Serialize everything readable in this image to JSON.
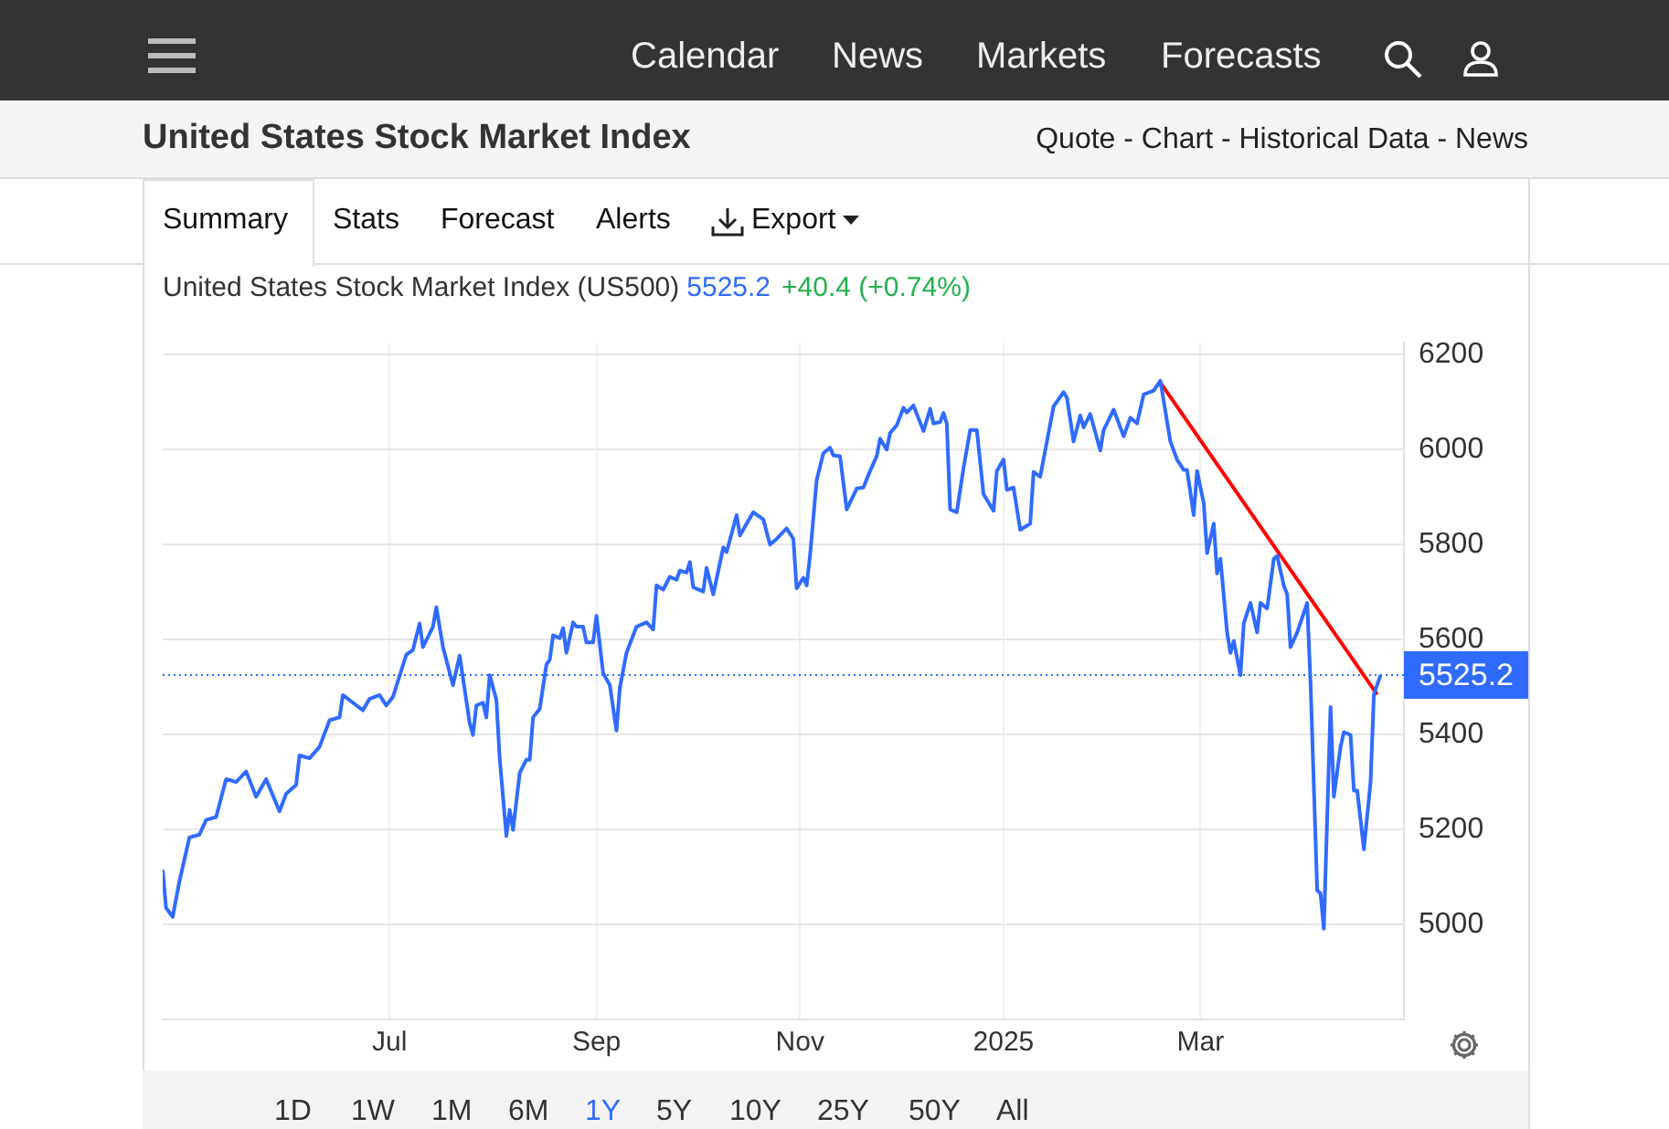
{
  "chart_data": {
    "type": "line",
    "title": "United States Stock Market Index",
    "subtitle": "United States Stock Market Index (US500)",
    "annotations": [
      "5525.2",
      "+40.4 (+0.74%)",
      "Calendar",
      "News",
      "Markets",
      "Forecasts",
      "Quote - Chart - Historical Data - News",
      "Summary",
      "Stats",
      "Forecast",
      "Alerts",
      "Export",
      "1D",
      "1W",
      "1M",
      "6M",
      "1Y",
      "5Y",
      "10Y",
      "25Y",
      "50Y",
      "All"
    ],
    "xlim": [
      "2024-04-24",
      "2025-05-01"
    ],
    "xticks": [
      {
        "value": "2024-07-01",
        "label": "Jul"
      },
      {
        "value": "2024-09-01",
        "label": "Sep"
      },
      {
        "value": "2024-11-01",
        "label": "Nov"
      },
      {
        "value": "2025-01-01",
        "label": "2025"
      },
      {
        "value": "2025-03-01",
        "label": "Mar"
      }
    ],
    "ylim": [
      4800,
      6225
    ],
    "yticks": [
      5000,
      5200,
      5400,
      5600,
      5800,
      6000,
      6200
    ],
    "grid": true,
    "legend": false,
    "marker": "none",
    "ref_lines": [
      {
        "axis": "y",
        "value": 5525.2,
        "label": "5525.2",
        "color": "#2f6bff",
        "line_style": "dotted"
      }
    ],
    "series": [
      {
        "color": "#2f6bff",
        "x": [
          "2024-04-24",
          "2024-04-25",
          "2024-04-27",
          "2024-04-29",
          "2024-05-02",
          "2024-05-05",
          "2024-05-07",
          "2024-05-10",
          "2024-05-13",
          "2024-05-16",
          "2024-05-19",
          "2024-05-22",
          "2024-05-25",
          "2024-05-29",
          "2024-05-31",
          "2024-06-03",
          "2024-06-04",
          "2024-06-07",
          "2024-06-10",
          "2024-06-13",
          "2024-06-16",
          "2024-06-17",
          "2024-06-20",
          "2024-06-23",
          "2024-06-25",
          "2024-06-28",
          "2024-06-30",
          "2024-07-02",
          "2024-07-06",
          "2024-07-08",
          "2024-07-10",
          "2024-07-11",
          "2024-07-14",
          "2024-07-15",
          "2024-07-17",
          "2024-07-20",
          "2024-07-22",
          "2024-07-25",
          "2024-07-26",
          "2024-07-27",
          "2024-07-29",
          "2024-07-30",
          "2024-07-31",
          "2024-08-02",
          "2024-08-03",
          "2024-08-05",
          "2024-08-06",
          "2024-08-07",
          "2024-08-09",
          "2024-08-11",
          "2024-08-12",
          "2024-08-13",
          "2024-08-15",
          "2024-08-17",
          "2024-08-18",
          "2024-08-19",
          "2024-08-21",
          "2024-08-22",
          "2024-08-23",
          "2024-08-25",
          "2024-08-26",
          "2024-08-28",
          "2024-08-29",
          "2024-08-31",
          "2024-09-01",
          "2024-09-03",
          "2024-09-05",
          "2024-09-07",
          "2024-09-08",
          "2024-09-10",
          "2024-09-13",
          "2024-09-16",
          "2024-09-18",
          "2024-09-19",
          "2024-09-21",
          "2024-09-23",
          "2024-09-25",
          "2024-09-26",
          "2024-09-28",
          "2024-09-29",
          "2024-09-30",
          "2024-10-03",
          "2024-10-04",
          "2024-10-06",
          "2024-10-09",
          "2024-10-10",
          "2024-10-13",
          "2024-10-14",
          "2024-10-16",
          "2024-10-18",
          "2024-10-21",
          "2024-10-23",
          "2024-10-25",
          "2024-10-28",
          "2024-10-30",
          "2024-10-31",
          "2024-11-02",
          "2024-11-03",
          "2024-11-04",
          "2024-11-06",
          "2024-11-08",
          "2024-11-10",
          "2024-11-11",
          "2024-11-13",
          "2024-11-15",
          "2024-11-18",
          "2024-11-20",
          "2024-11-22",
          "2024-11-24",
          "2024-11-25",
          "2024-11-27",
          "2024-11-28",
          "2024-11-30",
          "2024-12-02",
          "2024-12-03",
          "2024-12-05",
          "2024-12-08",
          "2024-12-10",
          "2024-12-11",
          "2024-12-13",
          "2024-12-14",
          "2024-12-15",
          "2024-12-16",
          "2024-12-18",
          "2024-12-20",
          "2024-12-22",
          "2024-12-24",
          "2024-12-26",
          "2024-12-29",
          "2024-12-30",
          "2025-01-01",
          "2025-01-02",
          "2025-01-04",
          "2025-01-06",
          "2025-01-09",
          "2025-01-10",
          "2025-01-12",
          "2025-01-14",
          "2025-01-16",
          "2025-01-19",
          "2025-01-20",
          "2025-01-22",
          "2025-01-24",
          "2025-01-25",
          "2025-01-27",
          "2025-01-30",
          "2025-01-31",
          "2025-02-03",
          "2025-02-06",
          "2025-02-08",
          "2025-02-10",
          "2025-02-12",
          "2025-02-15",
          "2025-02-17",
          "2025-02-20",
          "2025-02-22",
          "2025-02-24",
          "2025-02-25",
          "2025-02-27",
          "2025-02-28",
          "2025-03-02",
          "2025-03-03",
          "2025-03-05",
          "2025-03-06",
          "2025-03-07",
          "2025-03-09",
          "2025-03-10",
          "2025-03-11",
          "2025-03-13",
          "2025-03-14",
          "2025-03-16",
          "2025-03-18",
          "2025-03-19",
          "2025-03-21",
          "2025-03-23",
          "2025-03-24",
          "2025-03-26",
          "2025-03-27",
          "2025-03-28",
          "2025-03-30",
          "2025-04-02",
          "2025-04-03",
          "2025-04-05",
          "2025-04-06",
          "2025-04-07",
          "2025-04-09",
          "2025-04-10",
          "2025-04-12",
          "2025-04-13",
          "2025-04-15",
          "2025-04-16",
          "2025-04-17",
          "2025-04-19",
          "2025-04-21",
          "2025-04-22",
          "2025-04-24"
        ],
        "values": [
          5115,
          5035,
          5016,
          5090,
          5183,
          5189,
          5220,
          5226,
          5306,
          5300,
          5322,
          5269,
          5306,
          5238,
          5275,
          5294,
          5356,
          5350,
          5374,
          5430,
          5436,
          5483,
          5467,
          5451,
          5475,
          5483,
          5461,
          5479,
          5568,
          5578,
          5634,
          5584,
          5627,
          5668,
          5584,
          5504,
          5566,
          5424,
          5399,
          5461,
          5467,
          5436,
          5525,
          5473,
          5350,
          5186,
          5241,
          5199,
          5319,
          5347,
          5347,
          5436,
          5454,
          5547,
          5557,
          5609,
          5603,
          5624,
          5572,
          5636,
          5627,
          5627,
          5594,
          5594,
          5650,
          5529,
          5504,
          5408,
          5498,
          5572,
          5627,
          5636,
          5621,
          5714,
          5705,
          5732,
          5726,
          5745,
          5741,
          5763,
          5710,
          5701,
          5751,
          5695,
          5794,
          5784,
          5862,
          5819,
          5844,
          5868,
          5853,
          5800,
          5812,
          5834,
          5812,
          5708,
          5730,
          5714,
          5776,
          5936,
          5992,
          6004,
          5988,
          5986,
          5874,
          5918,
          5920,
          5955,
          5986,
          6023,
          6000,
          6035,
          6051,
          6088,
          6078,
          6093,
          6039,
          6086,
          6055,
          6058,
          6077,
          6055,
          5874,
          5868,
          5961,
          6041,
          6041,
          5906,
          5871,
          5955,
          5979,
          5915,
          5920,
          5831,
          5844,
          5953,
          5943,
          6017,
          6091,
          6121,
          6109,
          6017,
          6072,
          6047,
          6075,
          5998,
          6041,
          6084,
          6028,
          6067,
          6055,
          6116,
          6124,
          6145,
          6017,
          5979,
          5957,
          5957,
          5862,
          5955,
          5887,
          5782,
          5844,
          5739,
          5770,
          5615,
          5572,
          5597,
          5525,
          5634,
          5677,
          5615,
          5677,
          5665,
          5770,
          5776,
          5714,
          5695,
          5584,
          5615,
          5677,
          5510,
          5072,
          5065,
          4991,
          5458,
          5269,
          5374,
          5405,
          5399,
          5282,
          5282,
          5158,
          5300,
          5485,
          5525
        ]
      },
      {
        "type": "line",
        "color": "#ff0000",
        "x": [
          "2025-02-17",
          "2025-04-23"
        ],
        "values": [
          6141,
          5484
        ]
      }
    ]
  }
}
